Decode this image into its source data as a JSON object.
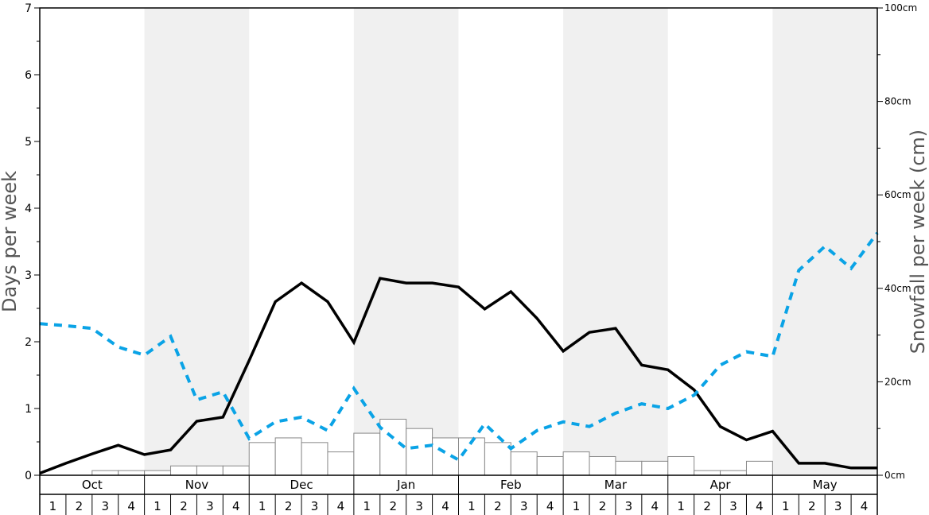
{
  "chart_data": {
    "type": "bar+line",
    "ylabel_left": "Days per week",
    "ylabel_right": "Snowfall per week (cm)",
    "ylim_left": [
      0,
      7
    ],
    "ylim_right": [
      0,
      100
    ],
    "left_ticks": [
      "0",
      "1",
      "2",
      "3",
      "4",
      "5",
      "6",
      "7"
    ],
    "right_ticks": [
      "0cm",
      "20cm",
      "40cm",
      "60cm",
      "80cm",
      "100cm"
    ],
    "months": [
      "Oct",
      "Nov",
      "Dec",
      "Jan",
      "Feb",
      "Mar",
      "Apr",
      "May"
    ],
    "weeks": [
      "1",
      "2",
      "3",
      "4"
    ],
    "shaded_months": [
      "Nov",
      "Jan",
      "Mar",
      "May"
    ],
    "colors": {
      "shade": "#f0f0f0",
      "bar_fill": "#ffffff",
      "bar_stroke": "#888888",
      "snow_days_line": "#000000",
      "blue_line": "#0aa3e6"
    },
    "series": [
      {
        "type": "bar",
        "axis": "right",
        "values": [
          0,
          0,
          1,
          1,
          1,
          2,
          2,
          2,
          7,
          8,
          7,
          5,
          9,
          12,
          10,
          8,
          8,
          7,
          5,
          4,
          5,
          4,
          3,
          3,
          4,
          1,
          1,
          3,
          0,
          0,
          0,
          0
        ]
      },
      {
        "type": "line",
        "axis": "left",
        "style": "solid",
        "values": [
          0.03,
          0.18,
          0.32,
          0.45,
          0.31,
          0.38,
          0.81,
          0.87,
          1.72,
          2.6,
          2.88,
          2.6,
          1.99,
          2.95,
          2.88,
          2.88,
          2.82,
          2.49,
          2.75,
          2.35,
          1.86,
          2.14,
          2.2,
          1.65,
          1.58,
          1.28,
          0.73,
          0.53,
          0.66,
          0.18,
          0.18,
          0.11,
          0.11
        ]
      },
      {
        "type": "line",
        "axis": "left",
        "style": "dashed",
        "values": [
          2.27,
          2.24,
          2.2,
          1.92,
          1.8,
          2.08,
          1.13,
          1.25,
          0.55,
          0.8,
          0.87,
          0.67,
          1.3,
          0.72,
          0.4,
          0.45,
          0.23,
          0.77,
          0.4,
          0.67,
          0.8,
          0.73,
          0.93,
          1.07,
          1.0,
          1.2,
          1.65,
          1.85,
          1.78,
          3.07,
          3.43,
          3.1,
          3.63
        ]
      }
    ]
  }
}
